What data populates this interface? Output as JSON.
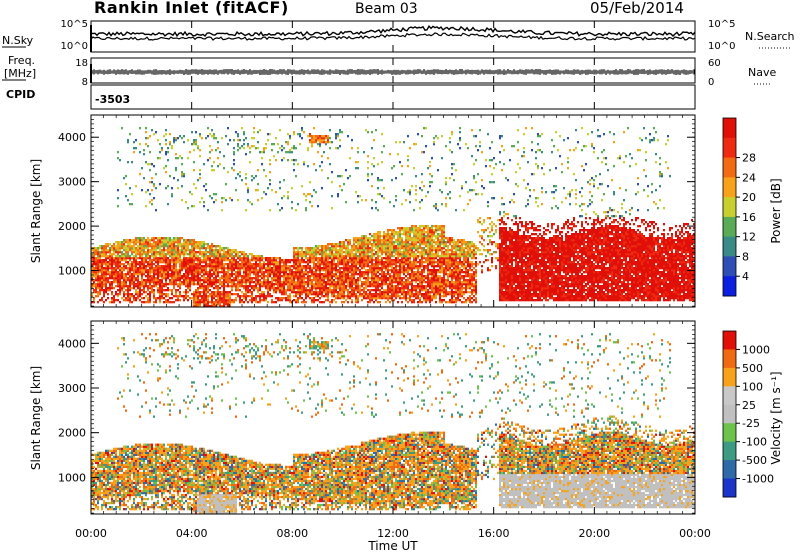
{
  "header": {
    "site": "Rankin Inlet (fitACF)",
    "beam": "Beam 03",
    "date": "05/Feb/2014"
  },
  "noise_panel": {
    "left_label": "N.Sky",
    "right_label": "N.Search",
    "left_ticks": [
      "10^5",
      "10^0"
    ],
    "right_ticks": [
      "10^5",
      "10^0"
    ]
  },
  "freq_panel": {
    "left_label_1": "Freq.",
    "left_label_2": "[MHz]",
    "right_label": "Nave",
    "left_ticks": [
      "18",
      "8"
    ],
    "right_ticks": [
      "60",
      "0"
    ]
  },
  "cpid_panel": {
    "label": "CPID",
    "value": "-3503"
  },
  "x_axis": {
    "ticks": [
      "00:00",
      "04:00",
      "08:00",
      "12:00",
      "16:00",
      "20:00",
      "00:00"
    ],
    "label": "Time UT"
  },
  "chart_data": [
    {
      "type": "heatmap",
      "title": "",
      "xlabel": "Time UT",
      "ylabel": "Slant Range [km]",
      "x_range_hours": [
        0,
        24
      ],
      "ylim_km": [
        180,
        4500
      ],
      "yticks": [
        "1000",
        "2000",
        "3000",
        "4000"
      ],
      "colorbar": {
        "label": "Power [dB]",
        "ticks": [
          "4",
          "8",
          "12",
          "16",
          "20",
          "24",
          "28"
        ],
        "colors": [
          "#0a1fe0",
          "#2d4fb5",
          "#3a8a86",
          "#5aab55",
          "#c8d030",
          "#f7a21a",
          "#f26b12",
          "#ee2a10",
          "#e01008"
        ]
      },
      "features": [
        {
          "region": "main band",
          "hours": [
            0,
            15
          ],
          "range_km": [
            400,
            1900
          ],
          "dominant_dB": "20-28"
        },
        {
          "region": "evening band",
          "hours": [
            16,
            24
          ],
          "range_km": [
            300,
            2000
          ],
          "dominant_dB": "24-30"
        },
        {
          "region": "high range echoes",
          "hours": [
            2,
            10
          ],
          "range_km": [
            3500,
            4100
          ],
          "dominant_dB": "8-20"
        }
      ]
    },
    {
      "type": "heatmap",
      "title": "",
      "xlabel": "Time UT",
      "ylabel": "Slant Range [km]",
      "x_range_hours": [
        0,
        24
      ],
      "ylim_km": [
        180,
        4500
      ],
      "yticks": [
        "1000",
        "2000",
        "3000",
        "4000"
      ],
      "colorbar": {
        "label": "Velocity [m s⁻¹]",
        "ticks": [
          "1000",
          "500",
          "100",
          "25",
          "-25",
          "-100",
          "-500",
          "-1000"
        ],
        "colors": [
          "#1a33c8",
          "#2f6aa8",
          "#3d9a83",
          "#6cc24a",
          "#c0c0c0",
          "#c8c8c8",
          "#f7a21a",
          "#f06a12",
          "#e01008"
        ]
      },
      "features": [
        {
          "region": "main band",
          "hours": [
            0,
            15
          ],
          "range_km": [
            400,
            1900
          ],
          "dominant_velocity": "-100 to -500"
        },
        {
          "region": "ground scatter",
          "hours": [
            16,
            23
          ],
          "range_km": [
            300,
            1000
          ],
          "dominant_velocity": "-25 to 25"
        }
      ]
    }
  ]
}
